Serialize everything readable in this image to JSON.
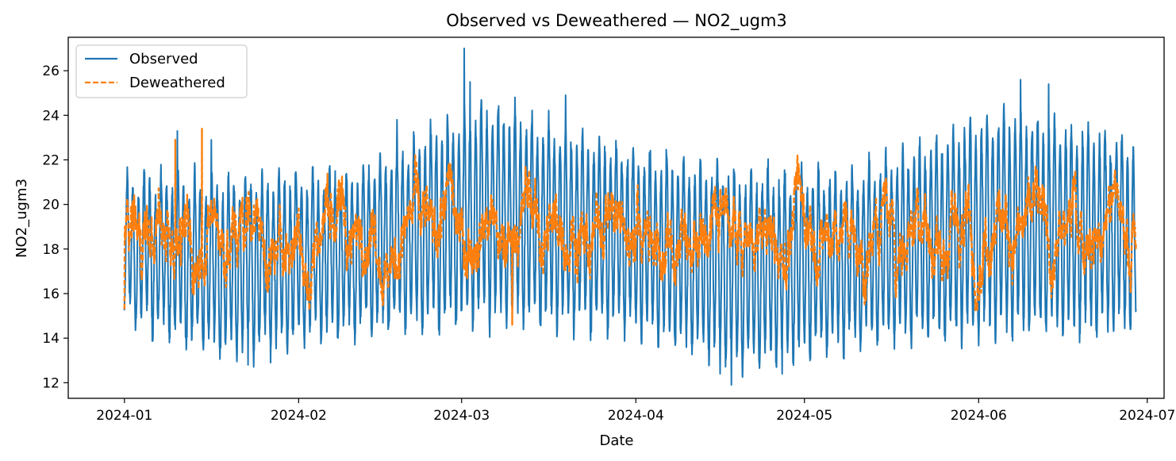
{
  "chart_data": {
    "type": "line",
    "title": "Observed vs Deweathered — NO2_ugm3",
    "xlabel": "Date",
    "ylabel": "NO2_ugm3",
    "xlim": [
      "2023-12-22",
      "2024-07-04"
    ],
    "ylim": [
      11.3,
      27.5
    ],
    "x_ticks": [
      "2024-01",
      "2024-02",
      "2024-03",
      "2024-04",
      "2024-05",
      "2024-06",
      "2024-07"
    ],
    "y_ticks": [
      12,
      14,
      16,
      18,
      20,
      22,
      24,
      26
    ],
    "x_range": [
      "2024-01-01",
      "2024-06-29"
    ],
    "sampling": "hourly",
    "grid": false,
    "legend_position": "top-left",
    "series": [
      {
        "name": "Observed",
        "color": "#1f77b4",
        "line_style": "solid",
        "seasonal_mean": [
          [
            "2024-01-01",
            18.0
          ],
          [
            "2024-01-20",
            17.2
          ],
          [
            "2024-02-10",
            17.8
          ],
          [
            "2024-03-05",
            19.6
          ],
          [
            "2024-04-01",
            18.4
          ],
          [
            "2024-04-20",
            17.0
          ],
          [
            "2024-05-10",
            17.6
          ],
          [
            "2024-06-05",
            19.2
          ],
          [
            "2024-06-29",
            18.6
          ]
        ],
        "daily_amplitude": [
          [
            "2024-01-01",
            2.8
          ],
          [
            "2024-01-20",
            3.6
          ],
          [
            "2024-02-10",
            3.2
          ],
          [
            "2024-03-05",
            4.4
          ],
          [
            "2024-04-01",
            3.6
          ],
          [
            "2024-04-20",
            4.0
          ],
          [
            "2024-05-10",
            3.4
          ],
          [
            "2024-06-05",
            4.6
          ],
          [
            "2024-06-29",
            3.8
          ]
        ],
        "peaks": [
          [
            "2024-01-10",
            23.3
          ],
          [
            "2024-01-16",
            22.9
          ],
          [
            "2024-02-19",
            23.8
          ],
          [
            "2024-03-01",
            27.0
          ],
          [
            "2024-03-03",
            25.5
          ],
          [
            "2024-03-11",
            24.8
          ],
          [
            "2024-03-20",
            24.9
          ],
          [
            "2024-06-08",
            25.6
          ],
          [
            "2024-06-13",
            25.4
          ]
        ],
        "troughs": [
          [
            "2024-01-23",
            12.8
          ],
          [
            "2024-04-16",
            12.4
          ],
          [
            "2024-04-18",
            11.9
          ],
          [
            "2024-04-27",
            12.4
          ]
        ]
      },
      {
        "name": "Deweathered",
        "color": "#ff7f0e",
        "line_style": "dashed",
        "seasonal_mean": [
          [
            "2024-01-01",
            18.6
          ],
          [
            "2024-02-01",
            18.5
          ],
          [
            "2024-03-01",
            19.0
          ],
          [
            "2024-04-01",
            18.6
          ],
          [
            "2024-05-01",
            18.7
          ],
          [
            "2024-06-01",
            19.0
          ],
          [
            "2024-06-29",
            18.7
          ]
        ],
        "peaks": [
          [
            "2024-01-10",
            22.9
          ],
          [
            "2024-01-15",
            23.4
          ]
        ],
        "troughs": [
          [
            "2024-01-01",
            15.3
          ],
          [
            "2024-03-10",
            14.6
          ]
        ]
      }
    ]
  }
}
